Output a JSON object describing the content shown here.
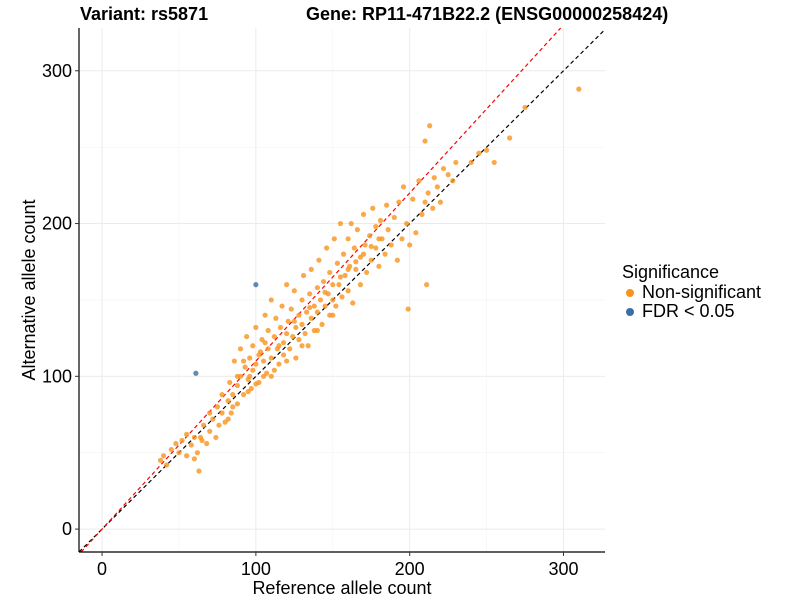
{
  "header": {
    "variant_title": "Variant: rs5871",
    "gene_title": "Gene: RP11-471B22.2 (ENSG00000258424)"
  },
  "legend": {
    "title": "Significance",
    "items": [
      {
        "label": "Non-significant",
        "color": "#F7941D"
      },
      {
        "label": "FDR < 0.05",
        "color": "#3A6EA5"
      }
    ]
  },
  "chart_data": {
    "type": "scatter",
    "title": "Variant: rs5871    Gene: RP11-471B22.2 (ENSG00000258424)",
    "xlabel": "Reference allele count",
    "ylabel": "Alternative allele count",
    "xlim": [
      -15,
      327
    ],
    "ylim": [
      -15,
      328
    ],
    "xticks": [
      0,
      100,
      200,
      300
    ],
    "yticks": [
      0,
      100,
      200,
      300
    ],
    "grid": true,
    "legend_position": "right",
    "reference_lines": [
      {
        "type": "identity",
        "slope": 1,
        "intercept": 0,
        "color": "#000000",
        "style": "dashed"
      },
      {
        "type": "fit",
        "slope": 1.1,
        "intercept": 0,
        "color": "#FF0000",
        "style": "dashed"
      }
    ],
    "series": [
      {
        "name": "Non-significant",
        "color": "#F7941D",
        "points": [
          [
            38,
            45
          ],
          [
            40,
            48
          ],
          [
            42,
            42
          ],
          [
            45,
            52
          ],
          [
            48,
            56
          ],
          [
            50,
            50
          ],
          [
            52,
            58
          ],
          [
            55,
            48
          ],
          [
            55,
            62
          ],
          [
            58,
            55
          ],
          [
            60,
            46
          ],
          [
            62,
            50
          ],
          [
            63,
            38
          ],
          [
            64,
            60
          ],
          [
            66,
            68
          ],
          [
            68,
            56
          ],
          [
            70,
            64
          ],
          [
            72,
            72
          ],
          [
            74,
            60
          ],
          [
            75,
            80
          ],
          [
            76,
            68
          ],
          [
            78,
            76
          ],
          [
            80,
            70
          ],
          [
            82,
            84
          ],
          [
            83,
            96
          ],
          [
            84,
            76
          ],
          [
            85,
            88
          ],
          [
            86,
            110
          ],
          [
            88,
            82
          ],
          [
            88,
            94
          ],
          [
            90,
            100
          ],
          [
            90,
            118
          ],
          [
            92,
            88
          ],
          [
            93,
            106
          ],
          [
            94,
            126
          ],
          [
            95,
            98
          ],
          [
            96,
            112
          ],
          [
            97,
            92
          ],
          [
            98,
            120
          ],
          [
            98,
            104
          ],
          [
            100,
            108
          ],
          [
            100,
            132
          ],
          [
            102,
            96
          ],
          [
            103,
            116
          ],
          [
            104,
            124
          ],
          [
            105,
            110
          ],
          [
            106,
            140
          ],
          [
            107,
            102
          ],
          [
            108,
            118
          ],
          [
            108,
            130
          ],
          [
            110,
            112
          ],
          [
            110,
            150
          ],
          [
            112,
            104
          ],
          [
            112,
            126
          ],
          [
            113,
            138
          ],
          [
            114,
            118
          ],
          [
            115,
            108
          ],
          [
            116,
            132
          ],
          [
            117,
            146
          ],
          [
            118,
            122
          ],
          [
            118,
            114
          ],
          [
            120,
            128
          ],
          [
            120,
            160
          ],
          [
            121,
            136
          ],
          [
            122,
            118
          ],
          [
            123,
            144
          ],
          [
            124,
            126
          ],
          [
            125,
            156
          ],
          [
            126,
            132
          ],
          [
            126,
            112
          ],
          [
            128,
            140
          ],
          [
            128,
            124
          ],
          [
            130,
            150
          ],
          [
            130,
            134
          ],
          [
            131,
            166
          ],
          [
            132,
            128
          ],
          [
            133,
            142
          ],
          [
            134,
            120
          ],
          [
            135,
            154
          ],
          [
            136,
            138
          ],
          [
            136,
            170
          ],
          [
            138,
            146
          ],
          [
            138,
            130
          ],
          [
            140,
            158
          ],
          [
            140,
            142
          ],
          [
            141,
            176
          ],
          [
            142,
            150
          ],
          [
            143,
            134
          ],
          [
            144,
            162
          ],
          [
            145,
            146
          ],
          [
            146,
            184
          ],
          [
            147,
            154
          ],
          [
            148,
            140
          ],
          [
            148,
            168
          ],
          [
            150,
            160
          ],
          [
            150,
            150
          ],
          [
            151,
            190
          ],
          [
            152,
            146
          ],
          [
            153,
            174
          ],
          [
            154,
            160
          ],
          [
            155,
            200
          ],
          [
            156,
            152
          ],
          [
            157,
            180
          ],
          [
            158,
            166
          ],
          [
            160,
            190
          ],
          [
            160,
            156
          ],
          [
            161,
            172
          ],
          [
            162,
            200
          ],
          [
            163,
            148
          ],
          [
            164,
            184
          ],
          [
            165,
            170
          ],
          [
            166,
            196
          ],
          [
            168,
            178
          ],
          [
            168,
            160
          ],
          [
            170,
            206
          ],
          [
            171,
            186
          ],
          [
            172,
            168
          ],
          [
            174,
            192
          ],
          [
            175,
            176
          ],
          [
            176,
            210
          ],
          [
            178,
            184
          ],
          [
            178,
            198
          ],
          [
            180,
            172
          ],
          [
            181,
            202
          ],
          [
            182,
            190
          ],
          [
            184,
            180
          ],
          [
            185,
            212
          ],
          [
            186,
            196
          ],
          [
            188,
            186
          ],
          [
            190,
            204
          ],
          [
            192,
            176
          ],
          [
            193,
            214
          ],
          [
            195,
            190
          ],
          [
            196,
            224
          ],
          [
            198,
            200
          ],
          [
            199,
            144
          ],
          [
            200,
            186
          ],
          [
            202,
            216
          ],
          [
            204,
            194
          ],
          [
            206,
            228
          ],
          [
            208,
            206
          ],
          [
            210,
            214
          ],
          [
            210,
            254
          ],
          [
            211,
            160
          ],
          [
            212,
            220
          ],
          [
            213,
            264
          ],
          [
            215,
            210
          ],
          [
            216,
            230
          ],
          [
            218,
            224
          ],
          [
            220,
            214
          ],
          [
            222,
            236
          ],
          [
            225,
            232
          ],
          [
            228,
            228
          ],
          [
            230,
            240
          ],
          [
            240,
            240
          ],
          [
            245,
            246
          ],
          [
            250,
            248
          ],
          [
            255,
            240
          ],
          [
            265,
            256
          ],
          [
            275,
            276
          ],
          [
            310,
            288
          ],
          [
            125,
            136
          ],
          [
            115,
            120
          ],
          [
            105,
            100
          ],
          [
            95,
            90
          ],
          [
            85,
            80
          ],
          [
            100,
            95
          ],
          [
            110,
            100
          ],
          [
            120,
            110
          ],
          [
            130,
            120
          ],
          [
            140,
            130
          ],
          [
            150,
            140
          ],
          [
            135,
            145
          ],
          [
            145,
            155
          ],
          [
            155,
            165
          ],
          [
            160,
            170
          ],
          [
            165,
            175
          ],
          [
            170,
            180
          ],
          [
            175,
            185
          ],
          [
            180,
            190
          ],
          [
            60,
            60
          ],
          [
            65,
            58
          ],
          [
            70,
            76
          ],
          [
            78,
            88
          ],
          [
            82,
            72
          ],
          [
            88,
            100
          ],
          [
            92,
            110
          ],
          [
            96,
            100
          ],
          [
            102,
            114
          ],
          [
            106,
            122
          ]
        ]
      },
      {
        "name": "FDR < 0.05",
        "color": "#3A6EA5",
        "points": [
          [
            61,
            102
          ],
          [
            100,
            160
          ]
        ]
      }
    ]
  }
}
